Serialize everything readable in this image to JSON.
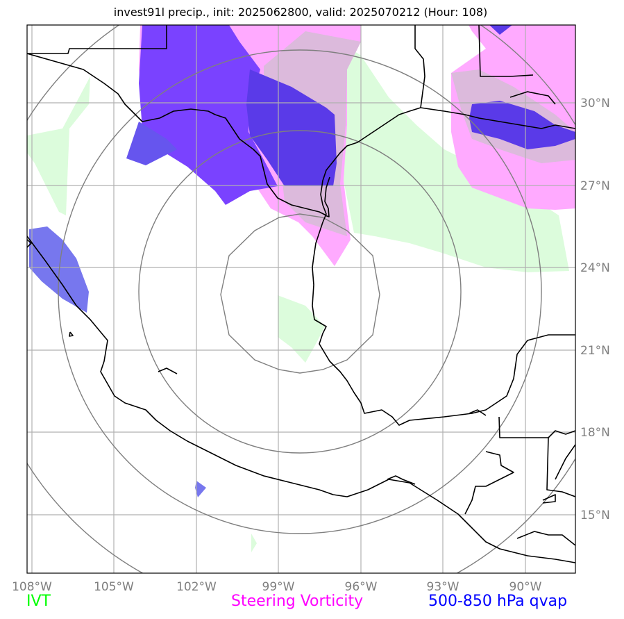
{
  "title": "invest91l precip., init: 2025062800, valid: 2025070212 (Hour: 108)",
  "lon_ticks": [
    "108°W",
    "105°W",
    "102°W",
    "99°W",
    "96°W",
    "93°W",
    "90°W"
  ],
  "lat_ticks": [
    "30°N",
    "27°N",
    "24°N",
    "21°N",
    "18°N",
    "15°N"
  ],
  "legend": {
    "ivt": "IVT",
    "vorticity": "Steering Vorticity",
    "qvap": "500-850 hPa qvap"
  },
  "colors": {
    "ivt": "#00ff00",
    "vorticity": "#ff00ff",
    "qvap": "#0000ff",
    "ivt_fill": "#dcfcdc",
    "vort_fill": "#ffb0ff",
    "qvap_fill": "#5a3cf0"
  }
}
